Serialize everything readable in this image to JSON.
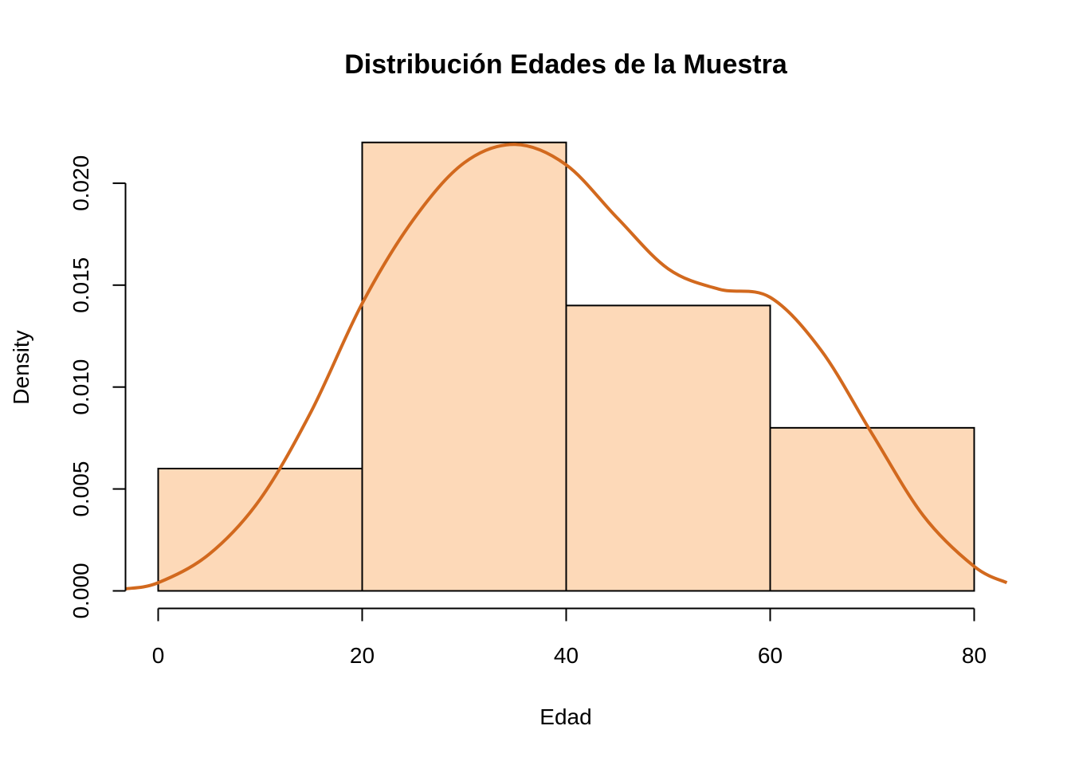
{
  "chart_data": {
    "type": "bar",
    "title": "Distribución Edades de la Muestra",
    "xlabel": "Edad",
    "ylabel": "Density",
    "bins": [
      {
        "x_start": 0,
        "x_end": 20,
        "density": 0.006
      },
      {
        "x_start": 20,
        "x_end": 40,
        "density": 0.022
      },
      {
        "x_start": 40,
        "x_end": 60,
        "density": 0.014
      },
      {
        "x_start": 60,
        "x_end": 80,
        "density": 0.008
      }
    ],
    "x_ticks": [
      "0",
      "20",
      "40",
      "60",
      "80"
    ],
    "y_ticks": [
      "0.000",
      "0.005",
      "0.010",
      "0.015",
      "0.020"
    ],
    "xlim": [
      -3.2,
      83.2
    ],
    "ylim": [
      0,
      0.022
    ],
    "density_curve": {
      "x": [
        -3.2,
        0,
        5,
        10,
        15,
        20,
        25,
        30,
        35,
        40,
        45,
        50,
        55,
        60,
        65,
        70,
        75,
        80,
        83.2
      ],
      "y": [
        0.0001,
        0.0004,
        0.0018,
        0.0045,
        0.0088,
        0.0141,
        0.0182,
        0.021,
        0.0219,
        0.0209,
        0.0183,
        0.0158,
        0.0148,
        0.0144,
        0.0118,
        0.0077,
        0.0037,
        0.0012,
        0.0004
      ]
    },
    "grid": false,
    "legend": "none",
    "colors": {
      "bar_fill": "#FDD9B8",
      "bar_edge": "#000000",
      "density_line": "#D2691E"
    }
  }
}
